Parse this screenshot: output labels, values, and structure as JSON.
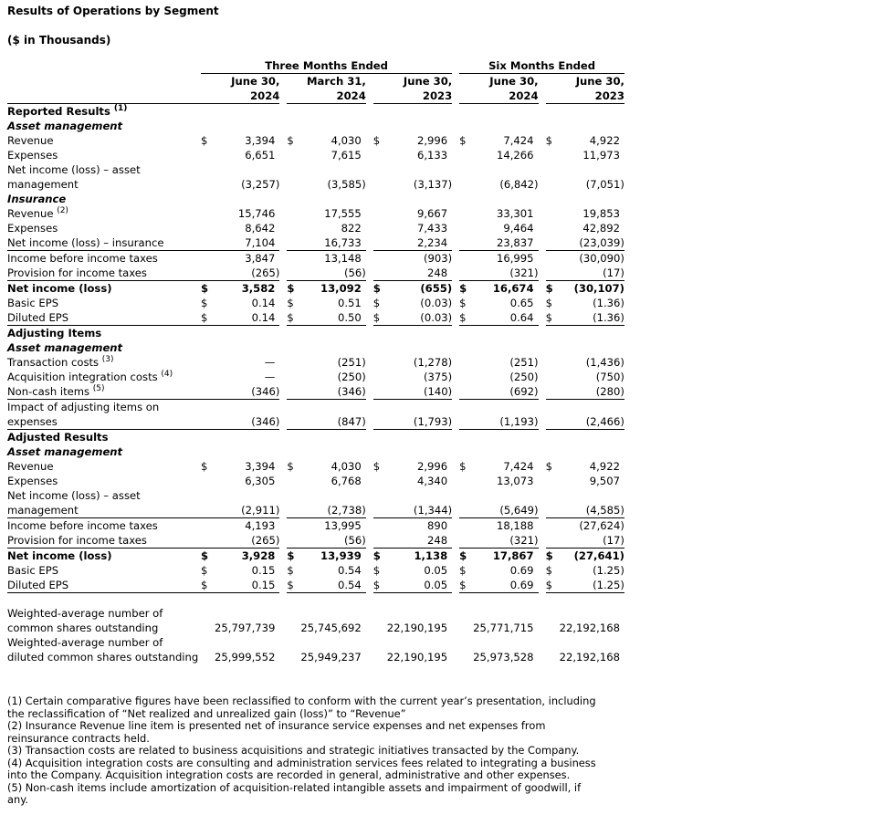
{
  "title": "Results of Operations by Segment",
  "subtitle": "($ in Thousands)",
  "header": {
    "groups": [
      {
        "label": "Three Months Ended",
        "span": 3
      },
      {
        "label": "Six Months Ended",
        "span": 2
      }
    ],
    "columns": [
      [
        "June 30,",
        "2024"
      ],
      [
        "March 31,",
        "2024"
      ],
      [
        "June 30,",
        "2023"
      ],
      [
        "June 30,",
        "2024"
      ],
      [
        "June 30,",
        "2023"
      ]
    ]
  },
  "rows": [
    {
      "type": "heading",
      "label": "Reported Results",
      "sup": "(1)"
    },
    {
      "type": "subheading",
      "label": "Asset management"
    },
    {
      "label": "Revenue",
      "dollar": true,
      "values": [
        "3,394",
        "4,030",
        "2,996",
        "7,424",
        "4,922"
      ]
    },
    {
      "label": "Expenses",
      "values": [
        "6,651",
        "7,615",
        "6,133",
        "14,266",
        "11,973"
      ]
    },
    {
      "label": "Net income (loss) – asset management",
      "values": [
        "(3,257)",
        "(3,585)",
        "(3,137)",
        "(6,842)",
        "(7,051)"
      ]
    },
    {
      "type": "subheading",
      "label": "Insurance"
    },
    {
      "label": "Revenue",
      "sup": "(2)",
      "values": [
        "15,746",
        "17,555",
        "9,667",
        "33,301",
        "19,853"
      ]
    },
    {
      "label": "Expenses",
      "values": [
        "8,642",
        "822",
        "7,433",
        "9,464",
        "42,892"
      ]
    },
    {
      "label": "Net income (loss) – insurance",
      "underline": true,
      "values": [
        "7,104",
        "16,733",
        "2,234",
        "23,837",
        "(23,039)"
      ]
    },
    {
      "label": "Income before income taxes",
      "values": [
        "3,847",
        "13,148",
        "(903)",
        "16,995",
        "(30,090)"
      ]
    },
    {
      "label": "Provision for income taxes",
      "underline": true,
      "values": [
        "(265)",
        "(56)",
        "248",
        "(321)",
        "(17)"
      ]
    },
    {
      "label": "Net income (loss)",
      "bold": true,
      "dollar": true,
      "values": [
        "3,582",
        "13,092",
        "(655)",
        "16,674",
        "(30,107)"
      ]
    },
    {
      "label": "Basic EPS",
      "dollar": true,
      "values": [
        "0.14",
        "0.51",
        "(0.03)",
        "0.65",
        "(1.36)"
      ]
    },
    {
      "label": "Diluted EPS",
      "dollar": true,
      "underline": true,
      "values": [
        "0.14",
        "0.50",
        "(0.03)",
        "0.64",
        "(1.36)"
      ]
    },
    {
      "type": "heading",
      "label": "Adjusting Items"
    },
    {
      "type": "subheading",
      "label": "Asset management"
    },
    {
      "label": "Transaction costs",
      "sup": "(3)",
      "values": [
        "—",
        "(251)",
        "(1,278)",
        "(251)",
        "(1,436)"
      ]
    },
    {
      "label": "Acquisition integration costs",
      "sup": "(4)",
      "values": [
        "—",
        "(250)",
        "(375)",
        "(250)",
        "(750)"
      ]
    },
    {
      "label": "Non-cash items",
      "sup": "(5)",
      "underline": true,
      "values": [
        "(346)",
        "(346)",
        "(140)",
        "(692)",
        "(280)"
      ]
    },
    {
      "label": "Impact of adjusting items on expenses",
      "underline": true,
      "values": [
        "(346)",
        "(847)",
        "(1,793)",
        "(1,193)",
        "(2,466)"
      ]
    },
    {
      "type": "heading",
      "label": "Adjusted Results"
    },
    {
      "type": "subheading",
      "label": "Asset management"
    },
    {
      "label": "Revenue",
      "dollar": true,
      "values": [
        "3,394",
        "4,030",
        "2,996",
        "7,424",
        "4,922"
      ]
    },
    {
      "label": "Expenses",
      "values": [
        "6,305",
        "6,768",
        "4,340",
        "13,073",
        "9,507"
      ]
    },
    {
      "label": "Net income (loss) – asset management",
      "underline": true,
      "values": [
        "(2,911)",
        "(2,738)",
        "(1,344)",
        "(5,649)",
        "(4,585)"
      ]
    },
    {
      "label": "Income before income taxes",
      "values": [
        "4,193",
        "13,995",
        "890",
        "18,188",
        "(27,624)"
      ]
    },
    {
      "label": "Provision for income taxes",
      "underline": true,
      "values": [
        "(265)",
        "(56)",
        "248",
        "(321)",
        "(17)"
      ]
    },
    {
      "label": "Net income (loss)",
      "bold": true,
      "dollar": true,
      "values": [
        "3,928",
        "13,939",
        "1,138",
        "17,867",
        "(27,641)"
      ]
    },
    {
      "label": "Basic EPS",
      "dollar": true,
      "values": [
        "0.15",
        "0.54",
        "0.05",
        "0.69",
        "(1.25)"
      ]
    },
    {
      "label": "Diluted EPS",
      "dollar": true,
      "underline": true,
      "values": [
        "0.15",
        "0.54",
        "0.05",
        "0.69",
        "(1.25)"
      ]
    },
    {
      "type": "gap"
    },
    {
      "label": "Weighted-average number of common shares outstanding",
      "values": [
        "25,797,739",
        "25,745,692",
        "22,190,195",
        "25,771,715",
        "22,192,168"
      ]
    },
    {
      "label": "Weighted-average number of diluted common shares outstanding",
      "values": [
        "25,999,552",
        "25,949,237",
        "22,190,195",
        "25,973,528",
        "22,192,168"
      ]
    }
  ],
  "footnotes": [
    "(1) Certain comparative figures have been reclassified to conform with the current year’s presentation, including the reclassification of “Net realized and unrealized gain (loss)” to “Revenue”",
    "(2) Insurance Revenue line item is presented net of insurance service expenses and net expenses from reinsurance contracts held.",
    "(3) Transaction costs are related to business acquisitions and strategic initiatives transacted by the Company.",
    "(4) Acquisition integration costs are consulting and administration services fees related to integrating a business into the Company. Acquisition integration costs are recorded in general, administrative and other expenses.",
    "(5) Non-cash items include amortization of acquisition-related intangible assets and impairment of goodwill, if any."
  ],
  "currency_symbol": "$"
}
